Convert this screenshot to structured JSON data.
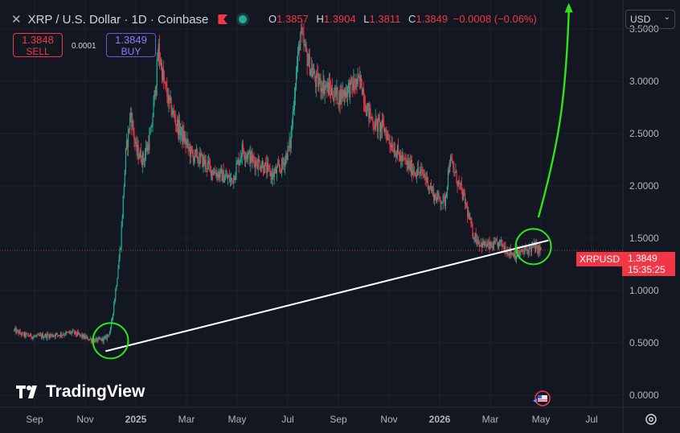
{
  "header": {
    "symbol": "XRP / U.S. Dollar · 1D · Coinbase",
    "ohlc": {
      "o_label": "O",
      "o": "1.3857",
      "h_label": "H",
      "h": "1.3904",
      "l_label": "L",
      "l": "1.3811",
      "c_label": "C",
      "c": "1.3849",
      "change": "−0.0008 (−0.06%)"
    }
  },
  "trade": {
    "sell_price": "1.3848",
    "sell_label": "SELL",
    "spread": "0.0001",
    "buy_price": "1.3849",
    "buy_label": "BUY"
  },
  "currency": "USD",
  "current_price": {
    "tag": "XRPUSD",
    "value": "1.3849",
    "countdown": "15:35:25"
  },
  "logo": "TradingView",
  "colors": {
    "up": "#22ab94",
    "down": "#f23645",
    "background": "#131722",
    "trendline": "#ffffff",
    "arrow": "#2ee51a"
  },
  "icons": [
    "close-icon",
    "flag-icon",
    "market-status-icon",
    "settings-icon",
    "earnings-flag-icon"
  ],
  "chart_data": {
    "type": "candlestick",
    "symbol": "XRPUSD",
    "ylim": [
      -0.08,
      3.75
    ],
    "yticks": [
      0.0,
      0.5,
      1.0,
      1.5,
      2.0,
      2.5,
      3.0,
      3.5
    ],
    "ytick_labels": [
      "0.0000",
      "0.5000",
      "1.0000",
      "1.5000",
      "2.0000",
      "2.5000",
      "3.0000",
      "3.5000"
    ],
    "x_labels": [
      "Sep",
      "Nov",
      "2025",
      "Mar",
      "May",
      "Jul",
      "Sep",
      "Nov",
      "2026",
      "Mar",
      "May",
      "Jul"
    ],
    "x_label_months": [
      0,
      2,
      4,
      6,
      8,
      10,
      12,
      14,
      16,
      18,
      20,
      22
    ],
    "x_label_bold": [
      false,
      false,
      true,
      false,
      false,
      false,
      false,
      false,
      true,
      false,
      false,
      false
    ],
    "x_start": "2024-08",
    "x_end": "2026-07",
    "price_path": [
      {
        "m": -0.8,
        "p": 0.62
      },
      {
        "m": -0.5,
        "p": 0.58
      },
      {
        "m": 0.0,
        "p": 0.56
      },
      {
        "m": 0.5,
        "p": 0.57
      },
      {
        "m": 1.0,
        "p": 0.58
      },
      {
        "m": 1.5,
        "p": 0.6
      },
      {
        "m": 2.0,
        "p": 0.55
      },
      {
        "m": 2.4,
        "p": 0.52
      },
      {
        "m": 2.8,
        "p": 0.54
      },
      {
        "m": 3.0,
        "p": 0.62
      },
      {
        "m": 3.2,
        "p": 1.0
      },
      {
        "m": 3.4,
        "p": 1.45
      },
      {
        "m": 3.6,
        "p": 2.3
      },
      {
        "m": 3.8,
        "p": 2.7
      },
      {
        "m": 4.0,
        "p": 2.35
      },
      {
        "m": 4.3,
        "p": 2.25
      },
      {
        "m": 4.6,
        "p": 2.5
      },
      {
        "m": 4.9,
        "p": 3.3
      },
      {
        "m": 5.1,
        "p": 3.0
      },
      {
        "m": 5.3,
        "p": 2.8
      },
      {
        "m": 5.6,
        "p": 2.6
      },
      {
        "m": 5.9,
        "p": 2.45
      },
      {
        "m": 6.2,
        "p": 2.3
      },
      {
        "m": 6.6,
        "p": 2.25
      },
      {
        "m": 7.0,
        "p": 2.15
      },
      {
        "m": 7.4,
        "p": 2.1
      },
      {
        "m": 7.8,
        "p": 2.05
      },
      {
        "m": 8.2,
        "p": 2.35
      },
      {
        "m": 8.6,
        "p": 2.25
      },
      {
        "m": 9.0,
        "p": 2.2
      },
      {
        "m": 9.4,
        "p": 2.1
      },
      {
        "m": 9.8,
        "p": 2.2
      },
      {
        "m": 10.1,
        "p": 2.4
      },
      {
        "m": 10.3,
        "p": 3.0
      },
      {
        "m": 10.5,
        "p": 3.45
      },
      {
        "m": 10.8,
        "p": 3.2
      },
      {
        "m": 11.1,
        "p": 3.0
      },
      {
        "m": 11.5,
        "p": 2.95
      },
      {
        "m": 12.0,
        "p": 2.85
      },
      {
        "m": 12.5,
        "p": 2.95
      },
      {
        "m": 12.9,
        "p": 3.0
      },
      {
        "m": 13.1,
        "p": 2.75
      },
      {
        "m": 13.4,
        "p": 2.6
      },
      {
        "m": 13.8,
        "p": 2.55
      },
      {
        "m": 14.1,
        "p": 2.4
      },
      {
        "m": 14.5,
        "p": 2.25
      },
      {
        "m": 15.0,
        "p": 2.15
      },
      {
        "m": 15.4,
        "p": 2.1
      },
      {
        "m": 15.8,
        "p": 1.9
      },
      {
        "m": 16.2,
        "p": 1.85
      },
      {
        "m": 16.4,
        "p": 2.25
      },
      {
        "m": 16.7,
        "p": 2.05
      },
      {
        "m": 17.0,
        "p": 1.85
      },
      {
        "m": 17.3,
        "p": 1.55
      },
      {
        "m": 17.6,
        "p": 1.45
      },
      {
        "m": 18.0,
        "p": 1.42
      },
      {
        "m": 18.4,
        "p": 1.45
      },
      {
        "m": 18.7,
        "p": 1.38
      },
      {
        "m": 19.0,
        "p": 1.34
      },
      {
        "m": 19.4,
        "p": 1.38
      },
      {
        "m": 19.7,
        "p": 1.42
      },
      {
        "m": 20.0,
        "p": 1.385
      }
    ],
    "last_price": 1.3849,
    "trendline": {
      "from": {
        "m": 2.8,
        "p": 0.42
      },
      "to": {
        "m": 20.3,
        "p": 1.48
      }
    },
    "highlight_circles": [
      {
        "m": 3.0,
        "p": 0.52
      },
      {
        "m": 19.7,
        "p": 1.42
      }
    ],
    "arrow": {
      "from": {
        "m": 19.9,
        "p": 1.7
      },
      "to": {
        "m": 21.1,
        "p": 3.75
      }
    }
  }
}
